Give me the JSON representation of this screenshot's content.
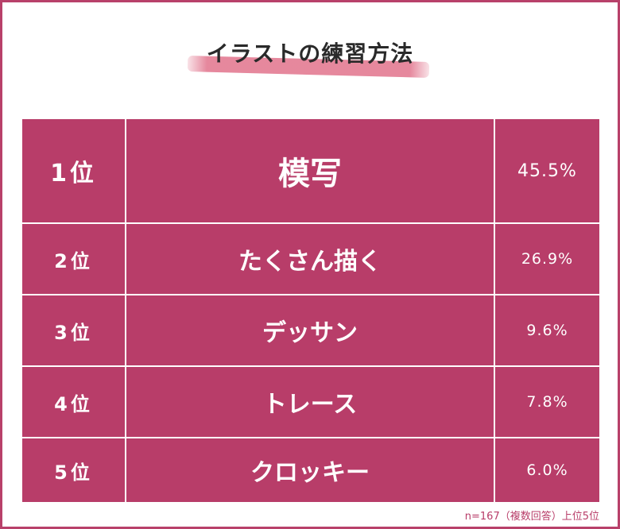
{
  "title": "イラストの練習方法",
  "note": "n=167（複数回答）上位5位",
  "colors": {
    "accent": "#b83d69",
    "highlight": "#e1738c",
    "text": "#2a2a2a"
  },
  "chart_data": {
    "type": "table",
    "title": "イラストの練習方法",
    "columns": [
      "rank",
      "method",
      "percent"
    ],
    "rows": [
      {
        "rank": "1位",
        "method": "模写",
        "percent": "45.5%",
        "value": 45.5
      },
      {
        "rank": "2位",
        "method": "たくさん描く",
        "percent": "26.9%",
        "value": 26.9
      },
      {
        "rank": "3位",
        "method": "デッサン",
        "percent": "9.6%",
        "value": 9.6
      },
      {
        "rank": "4位",
        "method": "トレース",
        "percent": "7.8%",
        "value": 7.8
      },
      {
        "rank": "5位",
        "method": "クロッキー",
        "percent": "6.0%",
        "value": 6.0
      }
    ],
    "sample_size": 167
  }
}
